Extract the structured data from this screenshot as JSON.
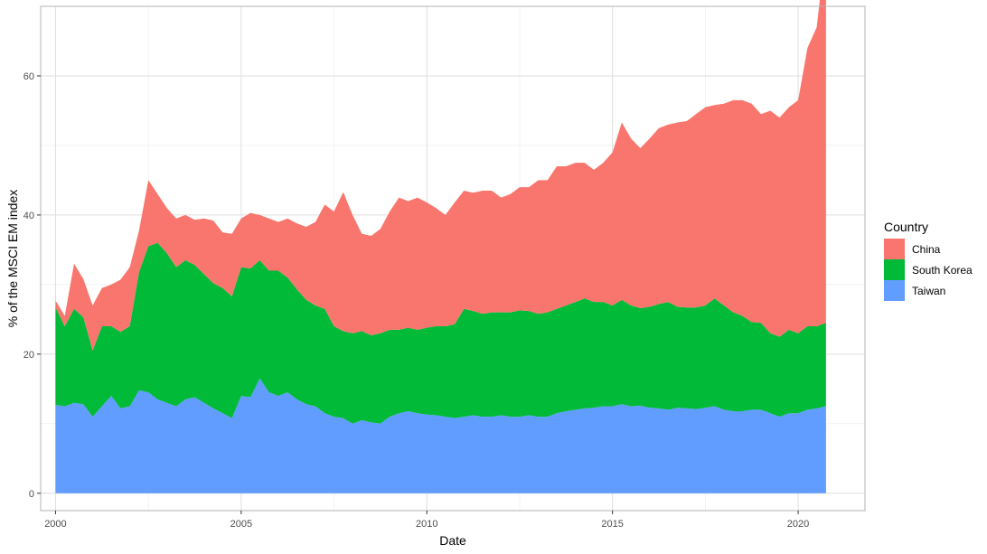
{
  "chart_data": {
    "type": "area",
    "stacked": true,
    "title": "",
    "xlabel": "Date",
    "ylabel": "% of the MSCI EM index",
    "xlim": [
      1999.6,
      2021.8
    ],
    "ylim": [
      -2.5,
      70
    ],
    "x_ticks": [
      2000,
      2005,
      2010,
      2015,
      2020
    ],
    "y_ticks": [
      0,
      20,
      40,
      60
    ],
    "grid": true,
    "legend": {
      "title": "Country",
      "position": "right"
    },
    "stack_order_bottom_to_top": [
      "Taiwan",
      "South Korea",
      "China"
    ],
    "x": [
      2000.0,
      2000.25,
      2000.5,
      2000.75,
      2001.0,
      2001.25,
      2001.5,
      2001.75,
      2002.0,
      2002.25,
      2002.5,
      2002.75,
      2003.0,
      2003.25,
      2003.5,
      2003.75,
      2004.0,
      2004.25,
      2004.5,
      2004.75,
      2005.0,
      2005.25,
      2005.5,
      2005.75,
      2006.0,
      2006.25,
      2006.5,
      2006.75,
      2007.0,
      2007.25,
      2007.5,
      2007.75,
      2008.0,
      2008.25,
      2008.5,
      2008.75,
      2009.0,
      2009.25,
      2009.5,
      2009.75,
      2010.0,
      2010.25,
      2010.5,
      2010.75,
      2011.0,
      2011.25,
      2011.5,
      2011.75,
      2012.0,
      2012.25,
      2012.5,
      2012.75,
      2013.0,
      2013.25,
      2013.5,
      2013.75,
      2014.0,
      2014.25,
      2014.5,
      2014.75,
      2015.0,
      2015.25,
      2015.5,
      2015.75,
      2016.0,
      2016.25,
      2016.5,
      2016.75,
      2017.0,
      2017.25,
      2017.5,
      2017.75,
      2018.0,
      2018.25,
      2018.5,
      2018.75,
      2019.0,
      2019.25,
      2019.5,
      2019.75,
      2020.0,
      2020.25,
      2020.5,
      2020.75
    ],
    "series": [
      {
        "name": "Taiwan",
        "color": "#619CFF",
        "values": [
          12.7,
          12.5,
          13.0,
          12.8,
          11.0,
          12.5,
          14.0,
          12.2,
          12.5,
          14.8,
          14.5,
          13.5,
          13.0,
          12.5,
          13.5,
          13.8,
          13.0,
          12.2,
          11.5,
          10.8,
          14.0,
          13.8,
          16.5,
          14.5,
          14.0,
          14.5,
          13.5,
          12.8,
          12.5,
          11.5,
          11.0,
          10.8,
          10.0,
          10.5,
          10.2,
          10.0,
          11.0,
          11.5,
          11.8,
          11.5,
          11.3,
          11.2,
          11.0,
          10.8,
          11.0,
          11.2,
          11.0,
          11.0,
          11.2,
          11.0,
          11.0,
          11.2,
          11.0,
          11.0,
          11.5,
          11.8,
          12.0,
          12.2,
          12.3,
          12.5,
          12.5,
          12.8,
          12.5,
          12.6,
          12.3,
          12.2,
          12.0,
          12.3,
          12.2,
          12.1,
          12.3,
          12.5,
          12.0,
          11.8,
          11.8,
          12.0,
          12.0,
          11.5,
          11.0,
          11.5,
          11.5,
          12.0,
          12.2,
          12.5
        ]
      },
      {
        "name": "South Korea",
        "color": "#00BA38",
        "values": [
          14.0,
          11.5,
          13.5,
          12.5,
          9.5,
          11.5,
          10.0,
          11.0,
          11.5,
          17.0,
          21.0,
          22.5,
          21.5,
          20.0,
          20.0,
          19.0,
          18.5,
          18.0,
          18.0,
          17.5,
          18.5,
          18.5,
          17.0,
          17.5,
          18.0,
          16.5,
          15.8,
          15.0,
          14.5,
          15.0,
          13.0,
          12.5,
          13.0,
          12.8,
          12.5,
          13.0,
          12.5,
          12.0,
          12.0,
          12.0,
          12.5,
          12.8,
          13.0,
          13.5,
          15.5,
          15.0,
          14.8,
          15.0,
          14.8,
          15.0,
          15.3,
          15.0,
          14.8,
          15.0,
          15.0,
          15.2,
          15.5,
          15.8,
          15.2,
          15.0,
          14.5,
          15.0,
          14.5,
          14.0,
          14.5,
          15.0,
          15.5,
          14.5,
          14.5,
          14.6,
          14.7,
          15.5,
          15.0,
          14.2,
          13.7,
          12.6,
          12.5,
          11.5,
          11.5,
          12.0,
          11.5,
          12.0,
          11.8,
          12.0
        ]
      },
      {
        "name": "China",
        "color": "#F8766D",
        "values": [
          1.0,
          1.5,
          6.5,
          5.5,
          6.5,
          5.5,
          6.0,
          7.5,
          8.5,
          6.0,
          9.5,
          7.0,
          6.5,
          7.0,
          6.5,
          6.5,
          8.0,
          9.0,
          8.0,
          9.0,
          7.0,
          8.0,
          6.5,
          7.5,
          7.0,
          8.5,
          9.5,
          10.5,
          12.0,
          15.0,
          16.5,
          20.0,
          17.0,
          14.0,
          14.3,
          15.0,
          17.0,
          19.0,
          18.2,
          19.0,
          18.0,
          17.0,
          16.0,
          17.5,
          17.0,
          17.0,
          17.7,
          17.5,
          16.5,
          17.0,
          17.7,
          17.8,
          19.2,
          19.0,
          20.5,
          20.0,
          20.0,
          19.5,
          19.0,
          20.0,
          22.0,
          25.5,
          24.0,
          23.0,
          24.2,
          25.3,
          25.5,
          26.5,
          26.8,
          27.8,
          28.5,
          27.8,
          29.0,
          30.5,
          31.0,
          31.4,
          30.0,
          32.0,
          31.5,
          32.0,
          33.5,
          40.0,
          43.0,
          54.0
        ]
      }
    ]
  }
}
